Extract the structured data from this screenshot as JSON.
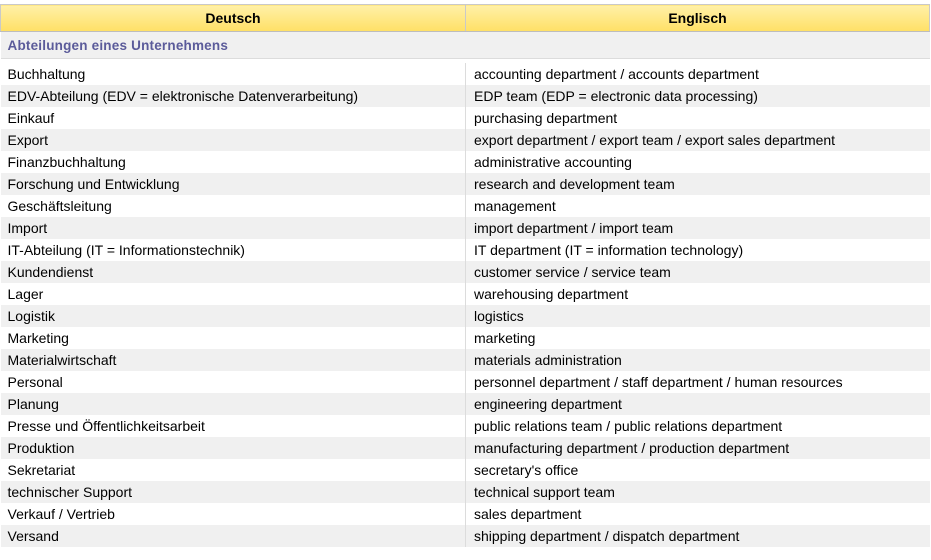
{
  "header": {
    "col_de": "Deutsch",
    "col_en": "Englisch"
  },
  "section": {
    "title": "Abteilungen eines Unternehmens"
  },
  "rows": [
    {
      "de": "Buchhaltung",
      "en": "accounting department / accounts department"
    },
    {
      "de": "EDV-Abteilung (EDV = elektronische Datenverarbeitung)",
      "en": "EDP team (EDP = electronic data processing)"
    },
    {
      "de": "Einkauf",
      "en": "purchasing department"
    },
    {
      "de": "Export",
      "en": "export department / export team / export sales department"
    },
    {
      "de": "Finanzbuchhaltung",
      "en": "administrative accounting"
    },
    {
      "de": "Forschung und Entwicklung",
      "en": "research and development team"
    },
    {
      "de": "Geschäftsleitung",
      "en": "management"
    },
    {
      "de": "Import",
      "en": "import department / import team"
    },
    {
      "de": "IT-Abteilung (IT = Informationstechnik)",
      "en": "IT department (IT = information technology)"
    },
    {
      "de": "Kundendienst",
      "en": "customer service / service team"
    },
    {
      "de": "Lager",
      "en": "warehousing department"
    },
    {
      "de": "Logistik",
      "en": "logistics"
    },
    {
      "de": "Marketing",
      "en": "marketing"
    },
    {
      "de": "Materialwirtschaft",
      "en": "materials administration"
    },
    {
      "de": "Personal",
      "en": "personnel department / staff department / human resources"
    },
    {
      "de": "Planung",
      "en": "engineering department"
    },
    {
      "de": "Presse und Öffentlichkeitsarbeit",
      "en": "public relations team / public relations department"
    },
    {
      "de": "Produktion",
      "en": "manufacturing department / production department"
    },
    {
      "de": "Sekretariat",
      "en": "secretary's office"
    },
    {
      "de": "technischer Support",
      "en": "technical support team"
    },
    {
      "de": "Verkauf / Vertrieb",
      "en": "sales department"
    },
    {
      "de": "Versand",
      "en": "shipping department / dispatch department"
    }
  ]
}
